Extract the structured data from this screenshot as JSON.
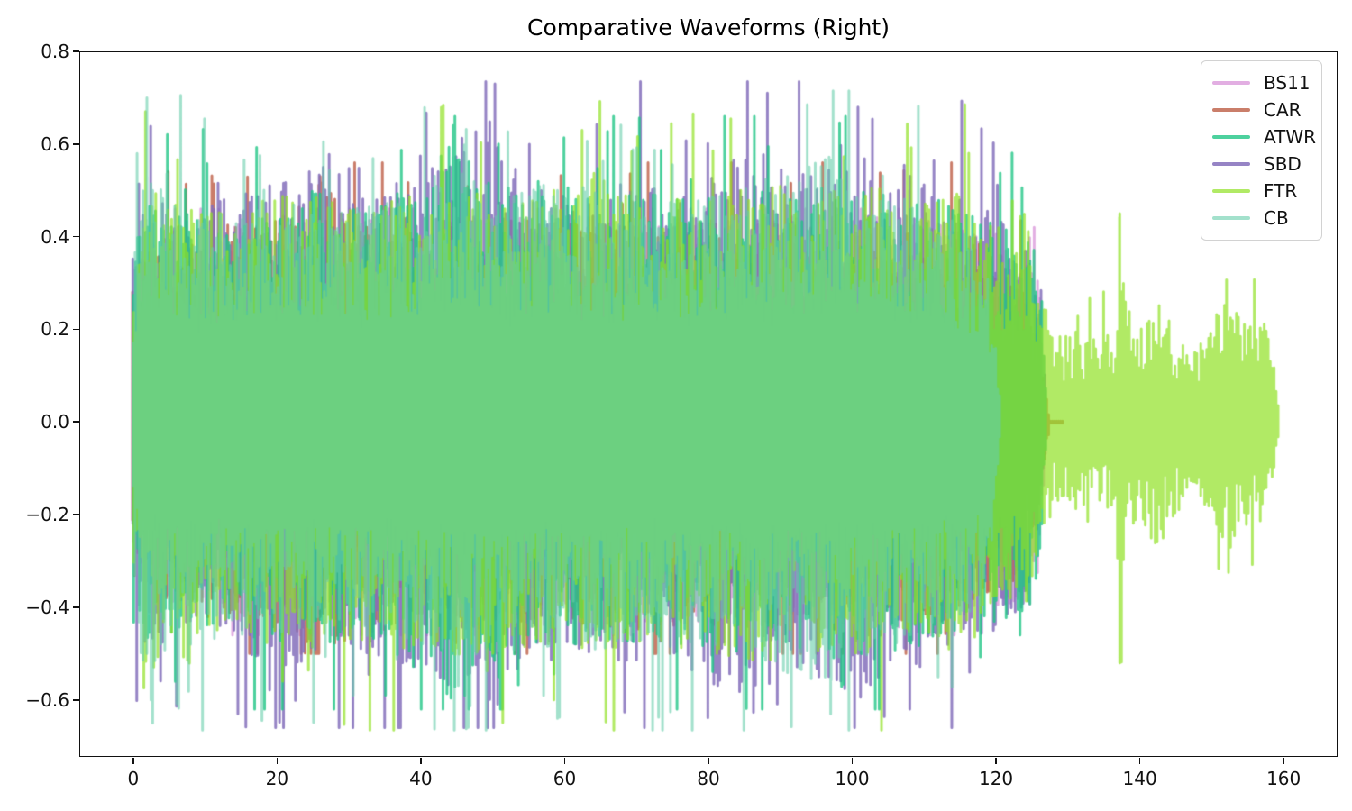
{
  "chart_data": {
    "type": "line",
    "subtype": "audio-waveform-overlay",
    "title": "Comparative Waveforms (Right)",
    "xlabel": "",
    "ylabel": "",
    "grid": false,
    "background": "#ffffff",
    "axis_color": "#111111",
    "xlim": [
      -7.5,
      167.5
    ],
    "ylim": [
      -0.723,
      0.8
    ],
    "xticks": [
      0,
      20,
      40,
      60,
      80,
      100,
      120,
      140,
      160
    ],
    "xtick_labels": [
      "0",
      "20",
      "40",
      "60",
      "80",
      "100",
      "120",
      "140",
      "160"
    ],
    "yticks": [
      -0.6,
      -0.4,
      -0.2,
      0.0,
      0.2,
      0.4,
      0.6,
      0.8
    ],
    "ytick_labels": [
      "−0.6",
      "−0.4",
      "−0.2",
      "0.0",
      "0.2",
      "0.4",
      "0.6",
      "0.8"
    ],
    "legend": {
      "position": "upper right",
      "labels": [
        "BS11",
        "CAR",
        "ATWR",
        "SBD",
        "FTR",
        "CB"
      ]
    },
    "draw_order": [
      "BS11",
      "CAR",
      "SBD",
      "ATWR",
      "FTR",
      "CB"
    ],
    "series": [
      {
        "name": "BS11",
        "color": "#DDA0DD",
        "alpha": 0.85,
        "seed": 11,
        "t_start": 0,
        "t_end": 127,
        "max_top": 0.46,
        "max_bottom": 0.46,
        "spike_p": 0.04,
        "envelope": [
          [
            0,
            0.33
          ],
          [
            1,
            0.42
          ],
          [
            5,
            0.4
          ],
          [
            15,
            0.43
          ],
          [
            25,
            0.44
          ],
          [
            40,
            0.45
          ],
          [
            55,
            0.44
          ],
          [
            70,
            0.45
          ],
          [
            85,
            0.44
          ],
          [
            100,
            0.45
          ],
          [
            110,
            0.44
          ],
          [
            118,
            0.42
          ],
          [
            124,
            0.4
          ],
          [
            125.5,
            0.41
          ],
          [
            126.5,
            0.22
          ],
          [
            127,
            0.05
          ]
        ],
        "spikes": [
          [
            125.3,
            0.42,
            -0.28
          ]
        ]
      },
      {
        "name": "CAR",
        "color": "#BB5940",
        "alpha": 0.78,
        "seed": 22,
        "t_start": 0,
        "t_end": 129.5,
        "max_top": 0.56,
        "max_bottom": 0.5,
        "spike_p": 0.04,
        "envelope": [
          [
            0,
            0.34
          ],
          [
            0.5,
            0.36
          ],
          [
            2,
            0.42
          ],
          [
            8,
            0.42
          ],
          [
            15,
            0.43
          ],
          [
            22,
            0.47
          ],
          [
            25,
            0.52
          ],
          [
            28,
            0.52
          ],
          [
            31,
            0.46
          ],
          [
            40,
            0.44
          ],
          [
            55,
            0.44
          ],
          [
            70,
            0.45
          ],
          [
            85,
            0.44
          ],
          [
            100,
            0.45
          ],
          [
            110,
            0.42
          ],
          [
            118,
            0.4
          ],
          [
            123,
            0.34
          ],
          [
            126,
            0.18
          ],
          [
            127,
            0.06
          ],
          [
            127.6,
            0
          ],
          [
            129.5,
            0
          ]
        ],
        "spikes": [
          [
            26,
            0.53,
            -0.42
          ]
        ]
      },
      {
        "name": "ATWR",
        "color": "#20C686",
        "alpha": 0.8,
        "seed": 33,
        "t_start": 0,
        "t_end": 127,
        "max_top": 0.66,
        "max_bottom": 0.62,
        "spike_p": 0.05,
        "envelope": [
          [
            0,
            0.34
          ],
          [
            1.5,
            0.5
          ],
          [
            4,
            0.46
          ],
          [
            10,
            0.44
          ],
          [
            18,
            0.46
          ],
          [
            25,
            0.5
          ],
          [
            32,
            0.46
          ],
          [
            40,
            0.54
          ],
          [
            44,
            0.6
          ],
          [
            46,
            0.62
          ],
          [
            48,
            0.56
          ],
          [
            55,
            0.5
          ],
          [
            62,
            0.48
          ],
          [
            70,
            0.5
          ],
          [
            78,
            0.48
          ],
          [
            85,
            0.5
          ],
          [
            92,
            0.5
          ],
          [
            100,
            0.52
          ],
          [
            106,
            0.5
          ],
          [
            112,
            0.48
          ],
          [
            118,
            0.44
          ],
          [
            123,
            0.42
          ],
          [
            125,
            0.4
          ],
          [
            126.5,
            0.26
          ],
          [
            127,
            0.05
          ]
        ],
        "spikes": [
          [
            44.5,
            0.64,
            -0.5
          ],
          [
            50.8,
            0.6,
            -0.55
          ]
        ]
      },
      {
        "name": "SBD",
        "color": "#846EBB",
        "alpha": 0.85,
        "seed": 44,
        "t_start": 0,
        "t_end": 127,
        "max_top": 0.735,
        "max_bottom": 0.66,
        "spike_p": 0.055,
        "envelope": [
          [
            0,
            0.38
          ],
          [
            2,
            0.5
          ],
          [
            6,
            0.46
          ],
          [
            12,
            0.48
          ],
          [
            20,
            0.52
          ],
          [
            26,
            0.56
          ],
          [
            33,
            0.5
          ],
          [
            40,
            0.54
          ],
          [
            45,
            0.62
          ],
          [
            50,
            0.68
          ],
          [
            52,
            0.56
          ],
          [
            60,
            0.5
          ],
          [
            68,
            0.52
          ],
          [
            76,
            0.52
          ],
          [
            84,
            0.6
          ],
          [
            88,
            0.66
          ],
          [
            92,
            0.55
          ],
          [
            97,
            0.58
          ],
          [
            101,
            0.63
          ],
          [
            104,
            0.55
          ],
          [
            108,
            0.56
          ],
          [
            112,
            0.5
          ],
          [
            116,
            0.48
          ],
          [
            120,
            0.46
          ],
          [
            124,
            0.4
          ],
          [
            126,
            0.25
          ],
          [
            127,
            0.06
          ]
        ],
        "spikes": [
          [
            50.3,
            0.73,
            -0.5
          ],
          [
            88.2,
            0.71,
            -0.44
          ],
          [
            100.8,
            0.68,
            -0.5
          ],
          [
            108,
            0.5,
            -0.62
          ]
        ]
      },
      {
        "name": "FTR",
        "color": "#90E123",
        "alpha": 0.7,
        "seed": 55,
        "t_start": 0,
        "t_end": 159.4,
        "max_top": 0.7,
        "max_bottom": 0.665,
        "spike_p": 0.05,
        "envelope": [
          [
            0,
            0.3
          ],
          [
            1.5,
            0.62
          ],
          [
            3,
            0.52
          ],
          [
            8,
            0.46
          ],
          [
            15,
            0.46
          ],
          [
            22,
            0.5
          ],
          [
            28,
            0.48
          ],
          [
            35,
            0.48
          ],
          [
            42,
            0.52
          ],
          [
            50,
            0.5
          ],
          [
            58,
            0.48
          ],
          [
            65,
            0.5
          ],
          [
            72,
            0.48
          ],
          [
            80,
            0.5
          ],
          [
            88,
            0.52
          ],
          [
            95,
            0.5
          ],
          [
            102,
            0.52
          ],
          [
            108,
            0.48
          ],
          [
            114,
            0.5
          ],
          [
            120,
            0.44
          ],
          [
            124,
            0.4
          ],
          [
            126.5,
            0.3
          ],
          [
            128,
            0.18
          ],
          [
            131,
            0.2
          ],
          [
            134,
            0.18
          ],
          [
            136.5,
            0.22
          ],
          [
            137.3,
            0.5
          ],
          [
            138,
            0.26
          ],
          [
            140,
            0.2
          ],
          [
            142.5,
            0.28
          ],
          [
            144,
            0.22
          ],
          [
            147,
            0.16
          ],
          [
            150,
            0.22
          ],
          [
            152.5,
            0.28
          ],
          [
            155,
            0.22
          ],
          [
            157,
            0.24
          ],
          [
            158.5,
            0.14
          ],
          [
            159.4,
            0.03
          ]
        ],
        "spikes": [
          [
            1.7,
            0.67,
            -0.5
          ],
          [
            58.5,
            0.5,
            -0.6
          ],
          [
            137.2,
            0.45,
            -0.52
          ]
        ]
      },
      {
        "name": "CB",
        "color": "#66CDAA",
        "alpha": 0.6,
        "seed": 66,
        "t_start": 0,
        "t_end": 120.5,
        "max_top": 0.715,
        "max_bottom": 0.665,
        "spike_p": 0.05,
        "envelope": [
          [
            0,
            0.3
          ],
          [
            1.8,
            0.66
          ],
          [
            3.5,
            0.52
          ],
          [
            8,
            0.48
          ],
          [
            15,
            0.46
          ],
          [
            22,
            0.48
          ],
          [
            30,
            0.46
          ],
          [
            38,
            0.48
          ],
          [
            46,
            0.54
          ],
          [
            52,
            0.5
          ],
          [
            60,
            0.52
          ],
          [
            68,
            0.48
          ],
          [
            76,
            0.48
          ],
          [
            84,
            0.5
          ],
          [
            92,
            0.55
          ],
          [
            98,
            0.58
          ],
          [
            103,
            0.5
          ],
          [
            108,
            0.48
          ],
          [
            113,
            0.46
          ],
          [
            117,
            0.4
          ],
          [
            119.5,
            0.28
          ],
          [
            120.5,
            0.06
          ]
        ],
        "spikes": [
          [
            1.9,
            0.7,
            -0.5
          ],
          [
            2.7,
            0.5,
            -0.65
          ],
          [
            59,
            0.5,
            -0.64
          ],
          [
            97,
            0.5,
            -0.63
          ]
        ]
      }
    ]
  }
}
